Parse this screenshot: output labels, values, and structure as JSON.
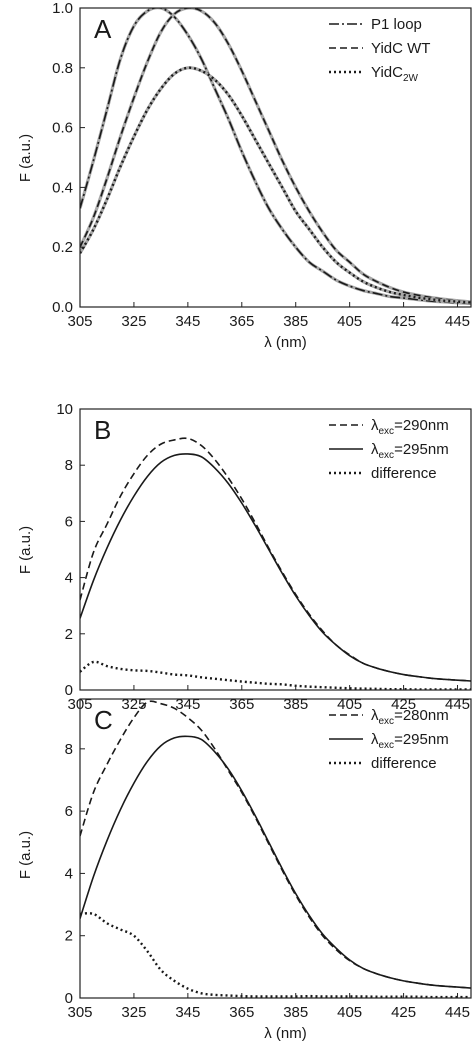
{
  "chart_data": [
    {
      "panel": "A",
      "type": "line",
      "xlabel": "λ (nm)",
      "ylabel": "F (a.u.)",
      "xlim": [
        305,
        450
      ],
      "ylim": [
        0,
        1.0
      ],
      "xticks": [
        305,
        325,
        345,
        365,
        385,
        405,
        425,
        445
      ],
      "yticks": [
        0.0,
        0.2,
        0.4,
        0.6,
        0.8,
        1.0
      ],
      "ytick_labels": [
        "0.0",
        "0.2",
        "0.4",
        "0.6",
        "0.8",
        "1.0"
      ],
      "show_xlabel": true,
      "legend": "top-right",
      "series": [
        {
          "name": "P1 loop",
          "label_main": "P1 loop",
          "label_sub": "",
          "style": "dashdot",
          "fit": true,
          "x": [
            305,
            310,
            315,
            320,
            325,
            330,
            335,
            340,
            345,
            350,
            355,
            360,
            365,
            370,
            375,
            380,
            385,
            390,
            395,
            400,
            405,
            410,
            415,
            420,
            425,
            430,
            435,
            440,
            445,
            450
          ],
          "y": [
            0.33,
            0.49,
            0.66,
            0.83,
            0.94,
            0.99,
            1.0,
            0.97,
            0.91,
            0.83,
            0.73,
            0.63,
            0.52,
            0.42,
            0.33,
            0.26,
            0.2,
            0.15,
            0.12,
            0.09,
            0.07,
            0.055,
            0.045,
            0.035,
            0.03,
            0.025,
            0.02,
            0.017,
            0.014,
            0.012
          ]
        },
        {
          "name": "YidC WT",
          "label_main": "YidC WT",
          "label_sub": "",
          "style": "dashed",
          "fit": true,
          "x": [
            305,
            310,
            315,
            320,
            325,
            330,
            335,
            340,
            345,
            350,
            355,
            360,
            365,
            370,
            375,
            380,
            385,
            390,
            395,
            400,
            405,
            410,
            415,
            420,
            425,
            430,
            435,
            440,
            445,
            450
          ],
          "y": [
            0.2,
            0.3,
            0.43,
            0.57,
            0.7,
            0.82,
            0.92,
            0.98,
            1.0,
            0.99,
            0.95,
            0.88,
            0.79,
            0.69,
            0.59,
            0.49,
            0.4,
            0.32,
            0.25,
            0.19,
            0.15,
            0.11,
            0.085,
            0.065,
            0.05,
            0.04,
            0.032,
            0.026,
            0.021,
            0.017
          ]
        },
        {
          "name": "YidC2W",
          "label_main": "YidC",
          "label_sub": "2W",
          "style": "dotted",
          "fit": true,
          "x": [
            305,
            310,
            315,
            320,
            325,
            330,
            335,
            340,
            345,
            350,
            355,
            360,
            365,
            370,
            375,
            380,
            385,
            390,
            395,
            400,
            405,
            410,
            415,
            420,
            425,
            430,
            435,
            440,
            445,
            450
          ],
          "y": [
            0.18,
            0.26,
            0.36,
            0.47,
            0.57,
            0.66,
            0.73,
            0.78,
            0.8,
            0.79,
            0.76,
            0.71,
            0.64,
            0.56,
            0.48,
            0.4,
            0.32,
            0.26,
            0.2,
            0.15,
            0.115,
            0.085,
            0.065,
            0.05,
            0.04,
            0.032,
            0.026,
            0.021,
            0.018,
            0.015
          ]
        }
      ]
    },
    {
      "panel": "B",
      "type": "line",
      "xlabel": "",
      "ylabel": "F (a.u.)",
      "xlim": [
        305,
        450
      ],
      "ylim": [
        0,
        10
      ],
      "xticks": [
        305,
        325,
        345,
        365,
        385,
        405,
        425,
        445
      ],
      "yticks": [
        0,
        2,
        4,
        6,
        8,
        10
      ],
      "ytick_labels": [
        "0",
        "2",
        "4",
        "6",
        "8",
        "10"
      ],
      "show_xlabel": false,
      "legend": "top-right",
      "series": [
        {
          "name": "λexc=290nm",
          "label_main": "λ",
          "label_sub": "exc",
          "label_tail": "=290nm",
          "style": "dashed",
          "x": [
            305,
            310,
            315,
            320,
            325,
            330,
            335,
            340,
            345,
            350,
            355,
            360,
            365,
            370,
            375,
            380,
            385,
            390,
            395,
            400,
            405,
            410,
            415,
            420,
            425,
            430,
            435,
            440,
            445,
            450
          ],
          "y": [
            3.2,
            4.9,
            5.9,
            6.9,
            7.7,
            8.35,
            8.75,
            8.9,
            8.95,
            8.7,
            8.2,
            7.55,
            6.8,
            5.95,
            5.05,
            4.2,
            3.4,
            2.7,
            2.1,
            1.6,
            1.25,
            0.95,
            0.78,
            0.65,
            0.55,
            0.48,
            0.42,
            0.38,
            0.35,
            0.32
          ]
        },
        {
          "name": "λexc=295nm",
          "label_main": "λ",
          "label_sub": "exc",
          "label_tail": "=295nm",
          "style": "solid",
          "x": [
            305,
            310,
            315,
            320,
            325,
            330,
            335,
            340,
            345,
            350,
            355,
            360,
            365,
            370,
            375,
            380,
            385,
            390,
            395,
            400,
            405,
            410,
            415,
            420,
            425,
            430,
            435,
            440,
            445,
            450
          ],
          "y": [
            2.55,
            3.9,
            5.05,
            6.05,
            6.9,
            7.6,
            8.1,
            8.35,
            8.4,
            8.3,
            7.9,
            7.35,
            6.65,
            5.85,
            5.0,
            4.15,
            3.35,
            2.65,
            2.05,
            1.6,
            1.22,
            0.95,
            0.78,
            0.65,
            0.55,
            0.48,
            0.42,
            0.38,
            0.35,
            0.32
          ]
        },
        {
          "name": "difference",
          "label_main": "difference",
          "label_sub": "",
          "style": "dotted",
          "x": [
            305,
            310,
            315,
            320,
            325,
            330,
            335,
            340,
            345,
            350,
            355,
            360,
            365,
            370,
            375,
            380,
            385,
            390,
            395,
            400,
            405,
            410,
            415,
            420,
            425,
            430,
            435,
            440,
            445,
            450
          ],
          "y": [
            0.65,
            1.0,
            0.85,
            0.75,
            0.7,
            0.68,
            0.62,
            0.55,
            0.52,
            0.45,
            0.4,
            0.35,
            0.3,
            0.26,
            0.22,
            0.2,
            0.15,
            0.12,
            0.1,
            0.08,
            0.06,
            0.05,
            0.04,
            0.03,
            0.03,
            0.02,
            0.02,
            0.02,
            0.02,
            0.02
          ]
        }
      ]
    },
    {
      "panel": "C",
      "type": "line",
      "xlabel": "λ (nm)",
      "ylabel": "F (a.u.)",
      "xlim": [
        305,
        450
      ],
      "ylim": [
        0,
        9.6
      ],
      "xticks": [
        305,
        325,
        345,
        365,
        385,
        405,
        425,
        445
      ],
      "yticks": [
        0,
        2,
        4,
        6,
        8
      ],
      "ytick_labels": [
        "0",
        "2",
        "4",
        "6",
        "8"
      ],
      "show_xlabel": true,
      "legend": "top-right",
      "series": [
        {
          "name": "λexc=280nm",
          "label_main": "λ",
          "label_sub": "exc",
          "label_tail": "=280nm",
          "style": "dashed",
          "x": [
            305,
            310,
            315,
            320,
            325,
            330,
            335,
            340,
            345,
            350,
            355,
            360,
            365,
            370,
            375,
            380,
            385,
            390,
            395,
            400,
            405,
            410,
            415,
            420,
            425,
            430,
            435,
            440,
            445,
            450
          ],
          "y": [
            5.2,
            6.6,
            7.5,
            8.3,
            9.0,
            9.5,
            9.45,
            9.3,
            9.0,
            8.6,
            8.0,
            7.3,
            6.6,
            5.8,
            4.95,
            4.1,
            3.3,
            2.6,
            2.0,
            1.55,
            1.2,
            0.95,
            0.78,
            0.65,
            0.55,
            0.48,
            0.42,
            0.38,
            0.35,
            0.32
          ]
        },
        {
          "name": "λexc=295nm",
          "label_main": "λ",
          "label_sub": "exc",
          "label_tail": "=295nm",
          "style": "solid",
          "x": [
            305,
            310,
            315,
            320,
            325,
            330,
            335,
            340,
            345,
            350,
            355,
            360,
            365,
            370,
            375,
            380,
            385,
            390,
            395,
            400,
            405,
            410,
            415,
            420,
            425,
            430,
            435,
            440,
            445,
            450
          ],
          "y": [
            2.55,
            3.9,
            5.05,
            6.05,
            6.9,
            7.6,
            8.1,
            8.35,
            8.4,
            8.3,
            7.9,
            7.35,
            6.65,
            5.85,
            5.0,
            4.15,
            3.35,
            2.65,
            2.05,
            1.6,
            1.22,
            0.95,
            0.78,
            0.65,
            0.55,
            0.48,
            0.42,
            0.38,
            0.35,
            0.32
          ]
        },
        {
          "name": "difference",
          "label_main": "difference",
          "label_sub": "",
          "style": "dotted",
          "x": [
            305,
            310,
            315,
            320,
            325,
            330,
            335,
            340,
            345,
            350,
            355,
            360,
            365,
            370,
            375,
            380,
            385,
            390,
            395,
            400,
            405,
            410,
            415,
            420,
            425,
            430,
            435,
            440,
            445,
            450
          ],
          "y": [
            2.7,
            2.7,
            2.4,
            2.2,
            2.0,
            1.5,
            0.9,
            0.55,
            0.3,
            0.15,
            0.1,
            0.08,
            0.06,
            0.05,
            0.05,
            0.05,
            0.05,
            0.06,
            0.05,
            0.05,
            0.05,
            0.05,
            0.04,
            0.04,
            0.04,
            0.04,
            0.03,
            0.03,
            0.03,
            0.03
          ]
        }
      ]
    }
  ]
}
